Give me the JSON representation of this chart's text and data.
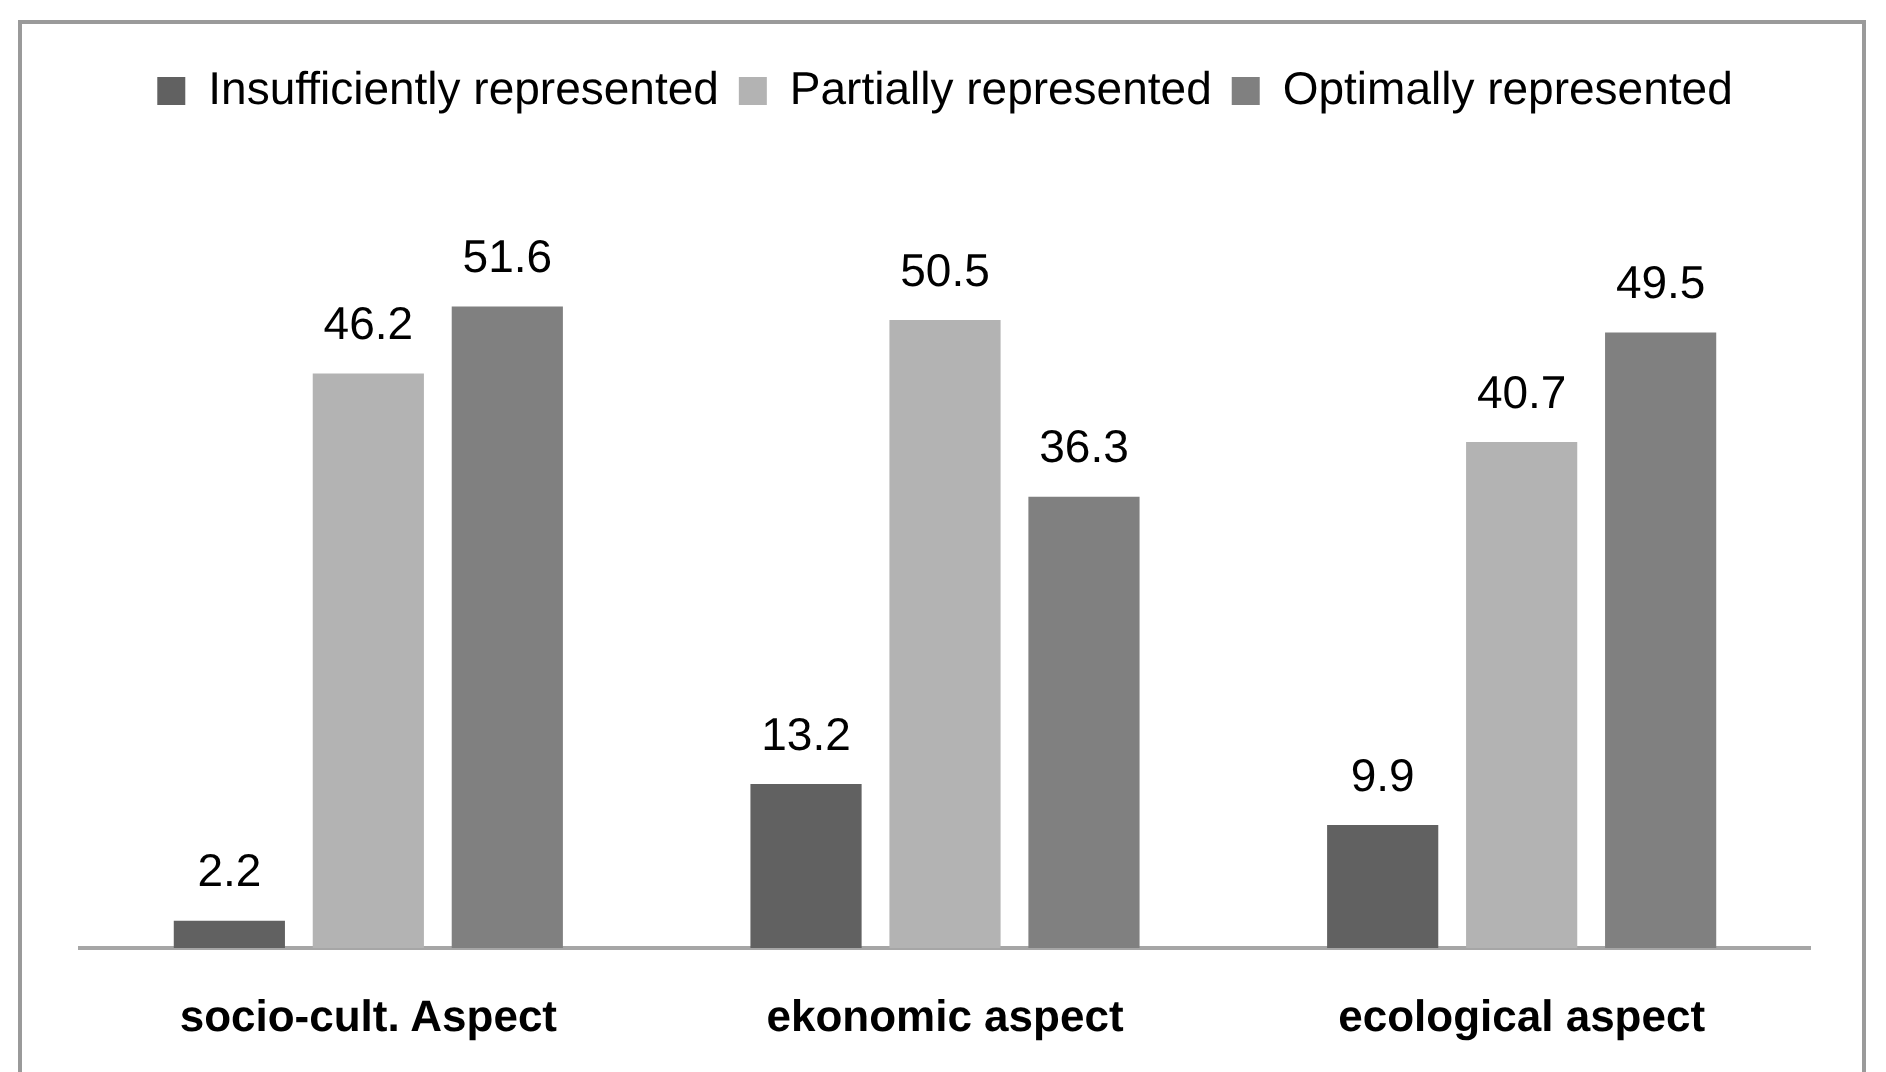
{
  "chart_data": {
    "type": "bar",
    "categories": [
      "socio-cult. Aspect",
      "ekonomic aspect",
      "ecological aspect"
    ],
    "series": [
      {
        "name": "Insufficiently represented",
        "color": "#616161",
        "values": [
          2.2,
          13.2,
          9.9
        ]
      },
      {
        "name": "Partially represented",
        "color": "#b3b3b3",
        "values": [
          46.2,
          50.5,
          40.7
        ]
      },
      {
        "name": "Optimally represented",
        "color": "#808080",
        "values": [
          51.6,
          36.3,
          49.5
        ]
      }
    ],
    "data_labels": true,
    "grid": false,
    "legend": "top",
    "tick_labels": "x"
  }
}
